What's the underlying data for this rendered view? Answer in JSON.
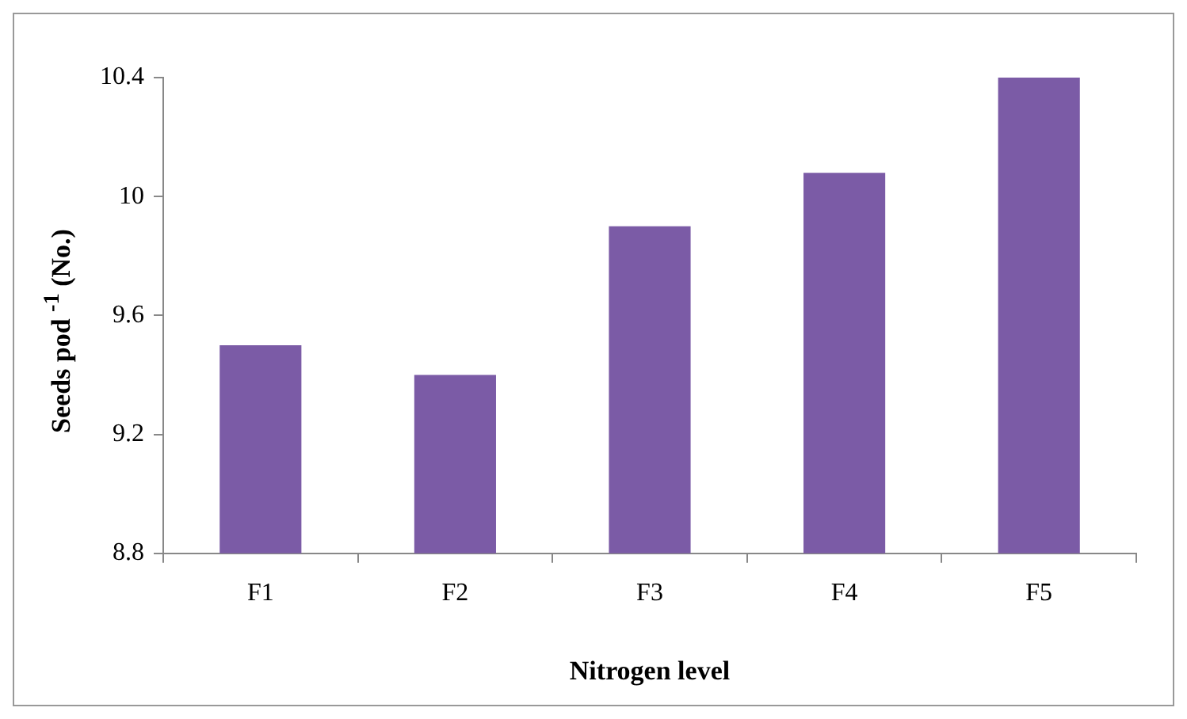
{
  "chart_data": {
    "type": "bar",
    "xlabel": "Nitrogen level",
    "ylabel": "Seeds pod $^{-1}$ (No.)",
    "categories": [
      "F1",
      "F2",
      "F3",
      "F4",
      "F5"
    ],
    "values": [
      9.5,
      9.4,
      9.9,
      10.08,
      10.4
    ],
    "color": "#7b5ba6",
    "ylim": [
      8.8,
      10.4
    ],
    "yticks": [
      8.8,
      9.2,
      9.6,
      10,
      10.4
    ],
    "grid": false,
    "legend": false
  }
}
